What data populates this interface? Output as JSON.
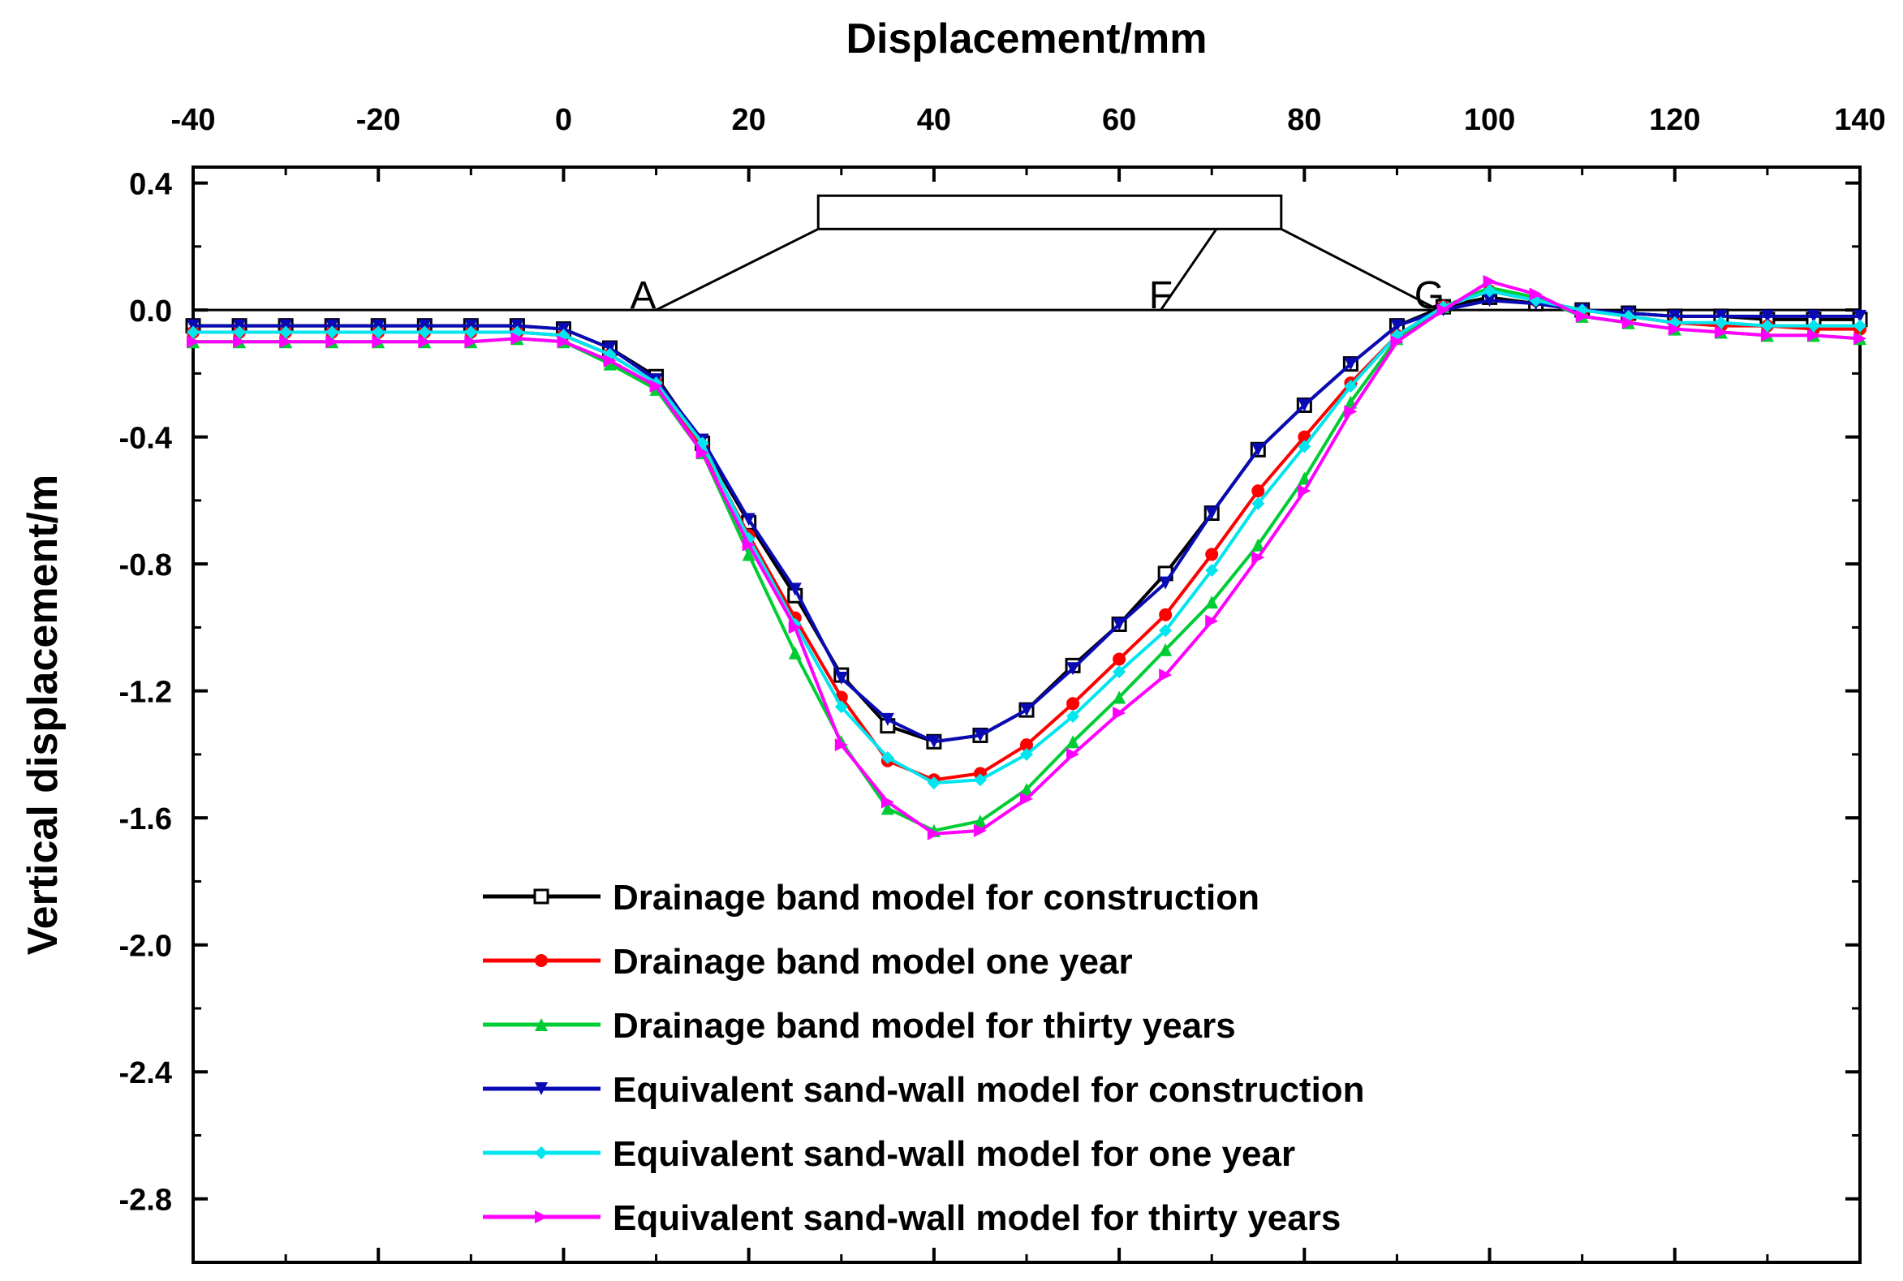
{
  "chart_data": {
    "type": "line",
    "xlabel": "Displacement/mm",
    "ylabel": "Vertical displacement/m",
    "xlim": [
      -40,
      140
    ],
    "ylim": [
      -3.0,
      0.45
    ],
    "x_ticks": [
      -40,
      -20,
      0,
      20,
      40,
      60,
      80,
      100,
      120,
      140
    ],
    "y_ticks": [
      0.4,
      0.0,
      -0.4,
      -0.8,
      -1.2,
      -1.6,
      -2.0,
      -2.4,
      -2.8
    ],
    "x_tick_labels": [
      "-40",
      "-20",
      "0",
      "20",
      "40",
      "60",
      "80",
      "100",
      "120",
      "140"
    ],
    "y_tick_labels": [
      "0.4",
      "0.0",
      "-0.4",
      "-0.8",
      "-1.2",
      "-1.6",
      "-2.0",
      "-2.4",
      "-2.8"
    ],
    "legend_position": "bottom-center",
    "annotations": {
      "embankment_points": [
        "A",
        "F",
        "G"
      ],
      "ground_line_y": 0.0
    },
    "series": [
      {
        "name": "Drainage band model for construction",
        "color": "#000000",
        "marker": "square-open",
        "x": [
          -40,
          -35,
          -30,
          -25,
          -20,
          -15,
          -10,
          -5,
          0,
          5,
          10,
          15,
          20,
          25,
          30,
          35,
          40,
          45,
          50,
          55,
          60,
          65,
          70,
          75,
          80,
          85,
          90,
          95,
          100,
          105,
          110,
          115,
          120,
          125,
          130,
          135,
          140
        ],
        "values": [
          -0.05,
          -0.05,
          -0.05,
          -0.05,
          -0.05,
          -0.05,
          -0.05,
          -0.05,
          -0.06,
          -0.12,
          -0.21,
          -0.42,
          -0.67,
          -0.9,
          -1.15,
          -1.31,
          -1.36,
          -1.34,
          -1.26,
          -1.12,
          -0.99,
          -0.83,
          -0.64,
          -0.44,
          -0.3,
          -0.17,
          -0.05,
          0.01,
          0.04,
          0.02,
          0.0,
          -0.01,
          -0.02,
          -0.02,
          -0.03,
          -0.03,
          -0.03
        ]
      },
      {
        "name": "Drainage band model one year",
        "color": "#ff0000",
        "marker": "circle",
        "x": [
          -40,
          -35,
          -30,
          -25,
          -20,
          -15,
          -10,
          -5,
          0,
          5,
          10,
          15,
          20,
          25,
          30,
          35,
          40,
          45,
          50,
          55,
          60,
          65,
          70,
          75,
          80,
          85,
          90,
          95,
          100,
          105,
          110,
          115,
          120,
          125,
          130,
          135,
          140
        ],
        "values": [
          -0.07,
          -0.07,
          -0.07,
          -0.07,
          -0.07,
          -0.07,
          -0.07,
          -0.07,
          -0.08,
          -0.14,
          -0.23,
          -0.43,
          -0.71,
          -0.97,
          -1.22,
          -1.42,
          -1.48,
          -1.46,
          -1.37,
          -1.24,
          -1.1,
          -0.96,
          -0.77,
          -0.57,
          -0.4,
          -0.23,
          -0.08,
          0.01,
          0.06,
          0.03,
          0.0,
          -0.02,
          -0.04,
          -0.05,
          -0.05,
          -0.06,
          -0.06
        ]
      },
      {
        "name": "Drainage band model for thirty years",
        "color": "#00cc33",
        "marker": "triangle-up",
        "x": [
          -40,
          -35,
          -30,
          -25,
          -20,
          -15,
          -10,
          -5,
          0,
          5,
          10,
          15,
          20,
          25,
          30,
          35,
          40,
          45,
          50,
          55,
          60,
          65,
          70,
          75,
          80,
          85,
          90,
          95,
          100,
          105,
          110,
          115,
          120,
          125,
          130,
          135,
          140
        ],
        "values": [
          -0.1,
          -0.1,
          -0.1,
          -0.1,
          -0.1,
          -0.1,
          -0.1,
          -0.09,
          -0.1,
          -0.17,
          -0.25,
          -0.45,
          -0.77,
          -1.08,
          -1.36,
          -1.57,
          -1.64,
          -1.61,
          -1.51,
          -1.36,
          -1.22,
          -1.07,
          -0.92,
          -0.74,
          -0.53,
          -0.29,
          -0.09,
          0.01,
          0.07,
          0.04,
          -0.02,
          -0.04,
          -0.06,
          -0.07,
          -0.08,
          -0.08,
          -0.09
        ]
      },
      {
        "name": "Equivalent sand-wall model for construction",
        "color": "#0a0ab4",
        "marker": "triangle-down",
        "x": [
          -40,
          -35,
          -30,
          -25,
          -20,
          -15,
          -10,
          -5,
          0,
          5,
          10,
          15,
          20,
          25,
          30,
          35,
          40,
          45,
          50,
          55,
          60,
          65,
          70,
          75,
          80,
          85,
          90,
          95,
          100,
          105,
          110,
          115,
          120,
          125,
          130,
          135,
          140
        ],
        "values": [
          -0.05,
          -0.05,
          -0.05,
          -0.05,
          -0.05,
          -0.05,
          -0.05,
          -0.05,
          -0.06,
          -0.12,
          -0.22,
          -0.41,
          -0.66,
          -0.88,
          -1.16,
          -1.29,
          -1.36,
          -1.34,
          -1.26,
          -1.13,
          -0.99,
          -0.86,
          -0.64,
          -0.44,
          -0.3,
          -0.17,
          -0.05,
          0.0,
          0.03,
          0.02,
          0.0,
          -0.01,
          -0.02,
          -0.02,
          -0.02,
          -0.02,
          -0.02
        ]
      },
      {
        "name": "Equivalent sand-wall model for one year",
        "color": "#00e5ee",
        "marker": "diamond",
        "x": [
          -40,
          -35,
          -30,
          -25,
          -20,
          -15,
          -10,
          -5,
          0,
          5,
          10,
          15,
          20,
          25,
          30,
          35,
          40,
          45,
          50,
          55,
          60,
          65,
          70,
          75,
          80,
          85,
          90,
          95,
          100,
          105,
          110,
          115,
          120,
          125,
          130,
          135,
          140
        ],
        "values": [
          -0.07,
          -0.07,
          -0.07,
          -0.07,
          -0.07,
          -0.07,
          -0.07,
          -0.07,
          -0.08,
          -0.14,
          -0.23,
          -0.42,
          -0.72,
          -0.99,
          -1.25,
          -1.41,
          -1.49,
          -1.48,
          -1.4,
          -1.28,
          -1.14,
          -1.01,
          -0.82,
          -0.61,
          -0.43,
          -0.24,
          -0.08,
          0.01,
          0.06,
          0.03,
          0.0,
          -0.02,
          -0.04,
          -0.04,
          -0.05,
          -0.05,
          -0.05
        ]
      },
      {
        "name": "Equivalent sand-wall model for thirty years",
        "color": "#ff00ff",
        "marker": "triangle-right",
        "x": [
          -40,
          -35,
          -30,
          -25,
          -20,
          -15,
          -10,
          -5,
          0,
          5,
          10,
          15,
          20,
          25,
          30,
          35,
          40,
          45,
          50,
          55,
          60,
          65,
          70,
          75,
          80,
          85,
          90,
          95,
          100,
          105,
          110,
          115,
          120,
          125,
          130,
          135,
          140
        ],
        "values": [
          -0.1,
          -0.1,
          -0.1,
          -0.1,
          -0.1,
          -0.1,
          -0.1,
          -0.09,
          -0.1,
          -0.16,
          -0.24,
          -0.45,
          -0.74,
          -1.0,
          -1.37,
          -1.55,
          -1.65,
          -1.64,
          -1.54,
          -1.4,
          -1.27,
          -1.15,
          -0.98,
          -0.78,
          -0.57,
          -0.32,
          -0.1,
          0.0,
          0.09,
          0.05,
          -0.02,
          -0.04,
          -0.06,
          -0.07,
          -0.08,
          -0.08,
          -0.09
        ]
      }
    ]
  }
}
